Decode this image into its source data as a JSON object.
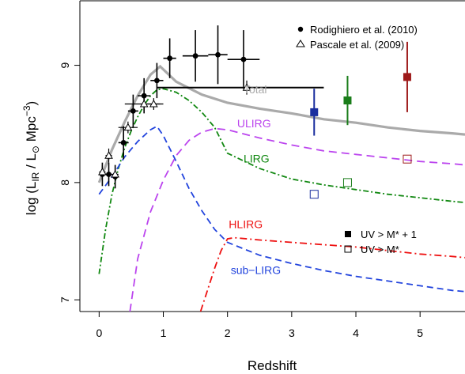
{
  "chart_data": {
    "type": "line",
    "xlabel": "Redshift",
    "ylabel_parts": {
      "main": "log (L",
      "sub1": "IR",
      "mid": " / L",
      "sub2": "⊙",
      "unit": " Mpc",
      "sup": "−3",
      "close": ")"
    },
    "xlim": [
      -0.3,
      5.7
    ],
    "ylim": [
      6.9,
      9.55
    ],
    "xticks": [
      0,
      1,
      2,
      3,
      4,
      5
    ],
    "yticks": [
      7,
      8,
      9
    ],
    "grid": false,
    "legend_top": {
      "position": "top-right",
      "entries": [
        {
          "label": "Rodighiero et al. (2010)",
          "marker": "filled-circle"
        },
        {
          "label": "Pascale et al. (2009)",
          "marker": "open-triangle"
        }
      ]
    },
    "legend_bottom": {
      "position": "lower-right",
      "entries": [
        {
          "label": "UV > M* + 1",
          "marker": "filled-square"
        },
        {
          "label": "UV > M*",
          "marker": "open-square"
        }
      ]
    },
    "curves": [
      {
        "name": "Total",
        "color": "#aaaaaa",
        "dash": "solid",
        "width": 3.2,
        "label": {
          "text": "Total",
          "x": 2.25,
          "y": 8.76
        },
        "x": [
          0,
          0.2,
          0.4,
          0.6,
          0.8,
          0.95,
          1.2,
          1.6,
          2.0,
          2.5,
          3.0,
          3.5,
          4.0,
          4.5,
          5.0,
          5.5,
          5.7
        ],
        "y": [
          8.0,
          8.28,
          8.52,
          8.74,
          8.92,
          8.99,
          8.86,
          8.75,
          8.68,
          8.63,
          8.59,
          8.54,
          8.51,
          8.47,
          8.44,
          8.42,
          8.41
        ]
      },
      {
        "name": "ULIRG",
        "color": "#bb44ee",
        "dash": "10,6",
        "width": 1.8,
        "label": {
          "text": "ULIRG",
          "x": 2.15,
          "y": 8.47
        },
        "x": [
          0.48,
          0.6,
          0.8,
          1.0,
          1.2,
          1.4,
          1.6,
          1.8,
          2.0,
          2.5,
          3.0,
          3.5,
          4.0,
          4.5,
          5.0,
          5.5,
          5.7
        ],
        "y": [
          6.9,
          7.35,
          7.75,
          8.02,
          8.23,
          8.36,
          8.43,
          8.46,
          8.45,
          8.38,
          8.32,
          8.27,
          8.24,
          8.21,
          8.18,
          8.16,
          8.15
        ]
      },
      {
        "name": "LIRG",
        "color": "#118811",
        "dash": "7,3,2,3",
        "width": 1.8,
        "label": {
          "text": "LIRG",
          "x": 2.25,
          "y": 8.17
        },
        "x": [
          0,
          0.1,
          0.2,
          0.3,
          0.4,
          0.5,
          0.6,
          0.7,
          0.8,
          0.9,
          1.0,
          1.2,
          1.4,
          1.6,
          1.8,
          2.0,
          2.5,
          3.0,
          3.5,
          4.0,
          4.5,
          5.0,
          5.5,
          5.7
        ],
        "y": [
          7.22,
          7.6,
          7.9,
          8.12,
          8.3,
          8.44,
          8.56,
          8.66,
          8.74,
          8.79,
          8.8,
          8.77,
          8.7,
          8.6,
          8.47,
          8.25,
          8.12,
          8.03,
          7.98,
          7.94,
          7.9,
          7.87,
          7.84,
          7.83
        ]
      },
      {
        "name": "sub-LIRG",
        "color": "#2244dd",
        "dash": "8,5",
        "width": 1.8,
        "label": {
          "text": "sub−LIRG",
          "x": 2.05,
          "y": 7.22
        },
        "x": [
          0,
          0.2,
          0.4,
          0.6,
          0.8,
          0.9,
          1.0,
          1.2,
          1.4,
          1.6,
          1.8,
          2.0,
          2.5,
          3.0,
          3.5,
          4.0,
          4.5,
          5.0,
          5.5,
          5.7
        ],
        "y": [
          7.9,
          8.05,
          8.22,
          8.35,
          8.45,
          8.48,
          8.4,
          8.18,
          7.95,
          7.76,
          7.6,
          7.49,
          7.38,
          7.31,
          7.25,
          7.2,
          7.16,
          7.12,
          7.08,
          7.07
        ]
      },
      {
        "name": "HLIRG",
        "color": "#ee1111",
        "dash": "9,4,2,4",
        "width": 1.8,
        "label": {
          "text": "HLIRG",
          "x": 2.02,
          "y": 7.61
        },
        "x": [
          1.58,
          1.7,
          1.8,
          1.9,
          2.0,
          2.1,
          2.5,
          3.0,
          3.5,
          4.0,
          4.5,
          5.0,
          5.5,
          5.7
        ],
        "y": [
          6.9,
          7.1,
          7.27,
          7.42,
          7.52,
          7.53,
          7.51,
          7.49,
          7.47,
          7.45,
          7.42,
          7.39,
          7.37,
          7.36
        ]
      }
    ],
    "total_horizontal_bar": {
      "xmin": 0.9,
      "xmax": 3.5,
      "y": 8.81,
      "color": "#000000"
    },
    "rodighiero": [
      {
        "x": 0.05,
        "y": 8.07,
        "xerr": 0.05,
        "yerr": 0.1
      },
      {
        "x": 0.15,
        "y": 8.07,
        "xerr": 0.05,
        "yerr": 0.1
      },
      {
        "x": 0.25,
        "y": 8.05,
        "xerr": 0.05,
        "yerr": 0.1
      },
      {
        "x": 0.38,
        "y": 8.34,
        "xerr": 0.08,
        "yerr": 0.14
      },
      {
        "x": 0.53,
        "y": 8.61,
        "xerr": 0.08,
        "yerr": 0.14
      },
      {
        "x": 0.7,
        "y": 8.74,
        "xerr": 0.1,
        "yerr": 0.15
      },
      {
        "x": 0.9,
        "y": 8.87,
        "xerr": 0.1,
        "yerr": 0.15
      },
      {
        "x": 1.1,
        "y": 9.06,
        "xerr": 0.1,
        "yerr": 0.17
      },
      {
        "x": 1.5,
        "y": 9.08,
        "xerr": 0.2,
        "yerr": 0.22
      },
      {
        "x": 1.85,
        "y": 9.09,
        "xerr": 0.15,
        "yerr": 0.25
      },
      {
        "x": 2.25,
        "y": 9.05,
        "xerr": 0.25,
        "yerr": 0.25
      }
    ],
    "pascale": [
      {
        "x": 0.05,
        "y": 8.09,
        "xerr": 0.05,
        "yerr": 0.06
      },
      {
        "x": 0.15,
        "y": 8.23,
        "xerr": 0.05,
        "yerr": 0.06
      },
      {
        "x": 0.25,
        "y": 8.07,
        "xerr": 0.05,
        "yerr": 0.06
      },
      {
        "x": 0.45,
        "y": 8.47,
        "xerr": 0.15,
        "yerr": 0.05
      },
      {
        "x": 0.7,
        "y": 8.67,
        "xerr": 0.3,
        "yerr": 0.05
      },
      {
        "x": 0.85,
        "y": 8.67,
        "xerr": 0.1,
        "yerr": 0.05
      },
      {
        "x": 2.3,
        "y": 8.81,
        "xerr": 0.0,
        "yerr": 0.06
      }
    ],
    "uv_filled": [
      {
        "x": 3.35,
        "y": 8.6,
        "yerr": 0.2,
        "color": "#1a2e9e"
      },
      {
        "x": 3.87,
        "y": 8.7,
        "yerr": 0.21,
        "color": "#1a7d1a"
      },
      {
        "x": 4.8,
        "y": 8.9,
        "yerr": 0.3,
        "color": "#9e1a1a"
      }
    ],
    "uv_open": [
      {
        "x": 3.35,
        "y": 7.9,
        "color": "#1a2e9e"
      },
      {
        "x": 3.87,
        "y": 8.0,
        "color": "#1a7d1a"
      },
      {
        "x": 4.8,
        "y": 8.2,
        "color": "#9e1a1a"
      }
    ]
  }
}
